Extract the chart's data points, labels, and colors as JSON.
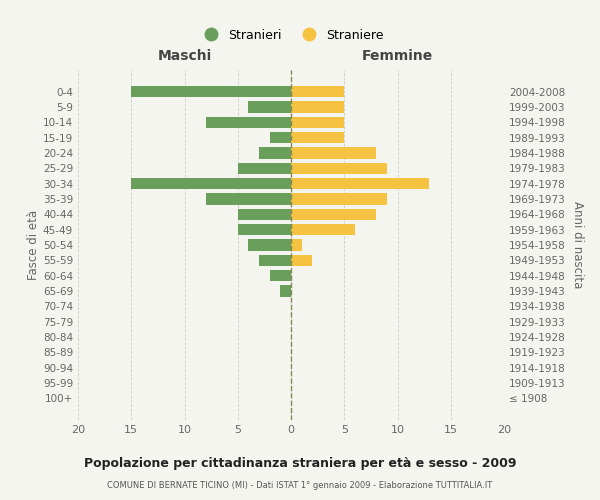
{
  "age_groups": [
    "100+",
    "95-99",
    "90-94",
    "85-89",
    "80-84",
    "75-79",
    "70-74",
    "65-69",
    "60-64",
    "55-59",
    "50-54",
    "45-49",
    "40-44",
    "35-39",
    "30-34",
    "25-29",
    "20-24",
    "15-19",
    "10-14",
    "5-9",
    "0-4"
  ],
  "birth_years": [
    "≤ 1908",
    "1909-1913",
    "1914-1918",
    "1919-1923",
    "1924-1928",
    "1929-1933",
    "1934-1938",
    "1939-1943",
    "1944-1948",
    "1949-1953",
    "1954-1958",
    "1959-1963",
    "1964-1968",
    "1969-1973",
    "1974-1978",
    "1979-1983",
    "1984-1988",
    "1989-1993",
    "1994-1998",
    "1999-2003",
    "2004-2008"
  ],
  "maschi": [
    0,
    0,
    0,
    0,
    0,
    0,
    0,
    1,
    2,
    3,
    4,
    5,
    5,
    8,
    15,
    5,
    3,
    2,
    8,
    4,
    15
  ],
  "straniere": [
    0,
    0,
    0,
    0,
    0,
    0,
    0,
    0,
    0,
    2,
    1,
    6,
    8,
    9,
    13,
    9,
    8,
    5,
    5,
    5,
    5
  ],
  "male_color": "#6a9e5b",
  "female_color": "#f5c242",
  "title": "Popolazione per cittadinanza straniera per età e sesso - 2009",
  "subtitle": "COMUNE DI BERNATE TICINO (MI) - Dati ISTAT 1° gennaio 2009 - Elaborazione TUTTITALIA.IT",
  "legend_male": "Stranieri",
  "legend_female": "Straniere",
  "xlabel_left": "Maschi",
  "xlabel_right": "Femmine",
  "ylabel_left": "Fasce di età",
  "ylabel_right": "Anni di nascita",
  "xlim": 20,
  "bg_color": "#f5f5f0",
  "grid_color": "#cccccc",
  "bar_height": 0.75
}
